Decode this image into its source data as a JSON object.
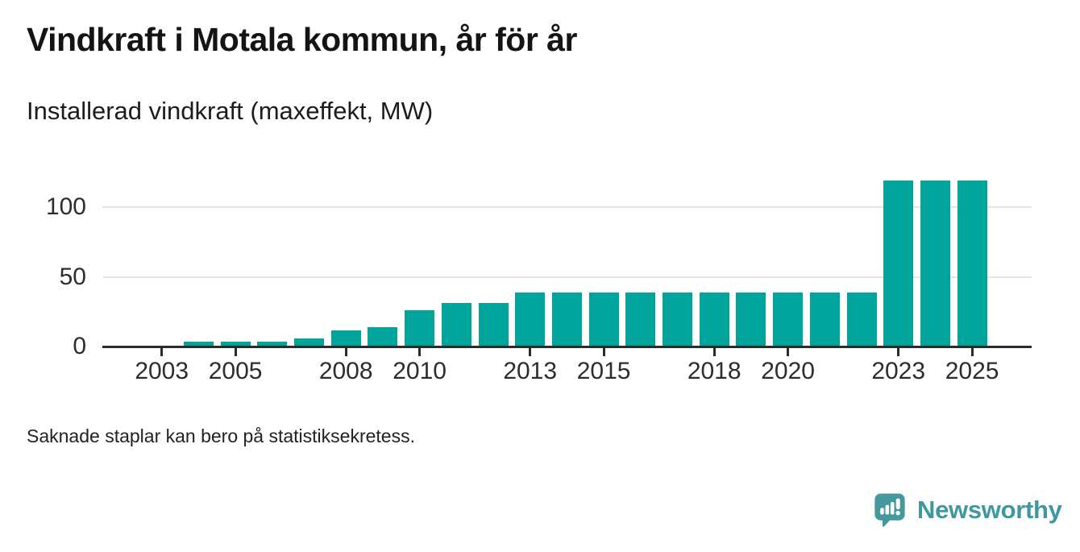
{
  "page": {
    "title": "Vindkraft i Motala kommun, år för år",
    "subtitle": "Installerad vindkraft (maxeffekt, MW)",
    "footnote": "Saknade staplar kan bero på statistiksekretess.",
    "brand": {
      "name": "Newsworthy",
      "icon": "speech-bubble-bar-chart-icon"
    }
  },
  "colors": {
    "bar": "#00A49B",
    "axis": "#2B2B2B",
    "gridline": "#E5E5E5",
    "title_text": "#141414",
    "tick_text": "#2D2D2D",
    "brand_teal": "#44999F"
  },
  "chart_data": {
    "type": "bar",
    "title": "Vindkraft i Motala kommun, år för år",
    "subtitle": "Installerad vindkraft (maxeffekt, MW)",
    "unit": "MW",
    "categories": [
      2002,
      2003,
      2004,
      2005,
      2006,
      2007,
      2008,
      2009,
      2010,
      2011,
      2012,
      2013,
      2014,
      2015,
      2016,
      2017,
      2018,
      2019,
      2020,
      2021,
      2022,
      2023,
      2024,
      2025,
      2026
    ],
    "values": [
      null,
      null,
      3.5,
      3.5,
      3.5,
      5.5,
      11.5,
      14,
      26,
      31,
      31,
      39,
      39,
      39,
      39,
      39,
      39,
      39,
      39,
      39,
      39,
      119,
      119,
      119,
      null
    ],
    "xticks": [
      2003,
      2005,
      2008,
      2010,
      2013,
      2015,
      2018,
      2020,
      2023,
      2025
    ],
    "yticks": [
      0,
      50,
      100
    ],
    "ylim": [
      0,
      125
    ],
    "grid": "horizontal",
    "legend": "none",
    "bar_color": "#00A49B"
  }
}
